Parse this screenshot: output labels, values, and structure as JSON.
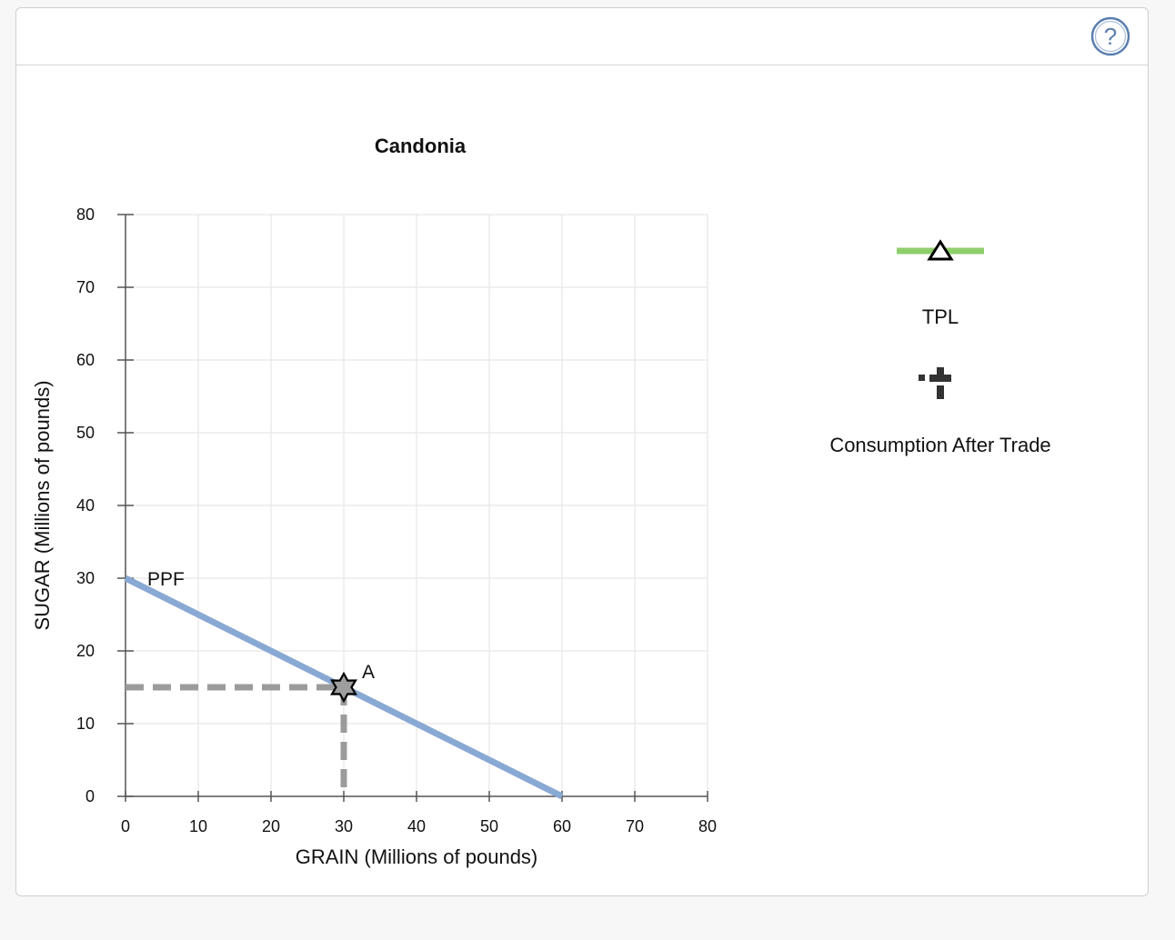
{
  "help": {
    "icon": "question-mark-icon",
    "glyph": "?",
    "color": "#5b7fb0"
  },
  "chart_data": {
    "type": "line",
    "title": "Candonia",
    "xlabel": "GRAIN (Millions of pounds)",
    "ylabel": "SUGAR (Millions of pounds)",
    "xlim": [
      0,
      80
    ],
    "ylim": [
      0,
      80
    ],
    "x_ticks": [
      0,
      10,
      20,
      30,
      40,
      50,
      60,
      70,
      80
    ],
    "y_ticks": [
      0,
      10,
      20,
      30,
      40,
      50,
      60,
      70,
      80
    ],
    "grid": true,
    "series": [
      {
        "name": "PPF",
        "points": [
          [
            0,
            30
          ],
          [
            60,
            0
          ]
        ],
        "color": "#88a9d3"
      }
    ],
    "point_a": {
      "label": "A",
      "x": 30,
      "y": 15,
      "marker": "star-icon",
      "guide_color": "#9b9b9b"
    },
    "legend": {
      "placement": "right",
      "items": [
        {
          "label": "TPL",
          "icon": "line-triangle-icon",
          "color": "#8fcf6b"
        },
        {
          "label": "Consumption After Trade",
          "icon": "dotted-cross-icon",
          "color": "#333333"
        }
      ]
    }
  }
}
